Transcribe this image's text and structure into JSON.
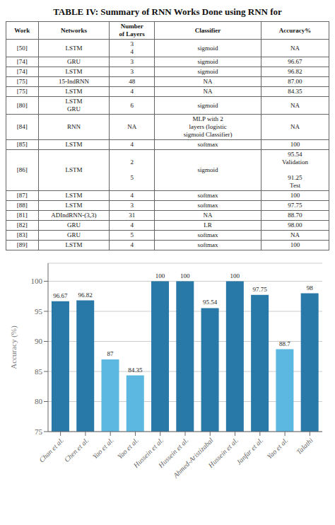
{
  "chart_data": [
    {
      "type": "table",
      "title": "TABLE IV: Summary of RNN Works Done using RNN for",
      "columns": [
        "Work",
        "Networks",
        "Number\nof Layers",
        "Classifier",
        "Accuracy%"
      ],
      "rows": [
        [
          "[50]",
          "LSTM",
          "3\n4",
          "sigmoid",
          "NA"
        ],
        [
          "[74]",
          "GRU",
          "3",
          "sigmoid",
          "96.67"
        ],
        [
          "[74]",
          "LSTM",
          "3",
          "sigmoid",
          "96.82"
        ],
        [
          "[75]",
          "15-IndRNN",
          "48",
          "NA",
          "87.00"
        ],
        [
          "[75]",
          "LSTM",
          "4",
          "NA",
          "84.35"
        ],
        [
          "[80]",
          "LSTM\nGRU",
          "6",
          "sigmoid",
          "NA"
        ],
        [
          "[84]",
          "RNN",
          "NA",
          "MLP with 2\nlayers (logistic\nsigmoid Classifier)",
          "NA"
        ],
        [
          "[85]",
          "LSTM",
          "4",
          "softmax",
          "100"
        ],
        [
          "[86]",
          "LSTM",
          "2\n\n5",
          "sigmoid",
          "95.54\nValidation\n\n91.25\nTest"
        ],
        [
          "[87]",
          "LSTM",
          "4",
          "softmax",
          "100"
        ],
        [
          "[88]",
          "LSTM",
          "3",
          "softmax",
          "97.75"
        ],
        [
          "[81]",
          "ADIndRNN-(3,3)",
          "31",
          "NA",
          "88.70"
        ],
        [
          "[82]",
          "GRU",
          "4",
          "LR",
          "98.00"
        ],
        [
          "[83]",
          "GRU",
          "5",
          "softmax",
          "NA"
        ],
        [
          "[89]",
          "LSTM",
          "4",
          "softmax",
          "100"
        ]
      ]
    },
    {
      "type": "bar",
      "categories": [
        "Chan et al.",
        "Chen et al.",
        "Yao et al.",
        "Yao et al.",
        "Hussein et al.",
        "Hussein et al.",
        "Ahmed-Aristizabal",
        "Hussein et al.",
        "Janfar et al.",
        "Yao et al.",
        "Talathi"
      ],
      "values": [
        96.67,
        96.82,
        87,
        84.35,
        100,
        100,
        95.54,
        100,
        97.75,
        88.7,
        98
      ],
      "colors": [
        "#2878a8",
        "#2878a8",
        "#5cb8e0",
        "#5cb8e0",
        "#2878a8",
        "#2878a8",
        "#2878a8",
        "#2878a8",
        "#2878a8",
        "#5cb8e0",
        "#2878a8"
      ],
      "ylabel": "Accuracy (%)",
      "ylim": [
        75,
        103
      ],
      "yticks": [
        75,
        80,
        85,
        90,
        95,
        100
      ],
      "grid": true,
      "data_labels": true
    }
  ]
}
